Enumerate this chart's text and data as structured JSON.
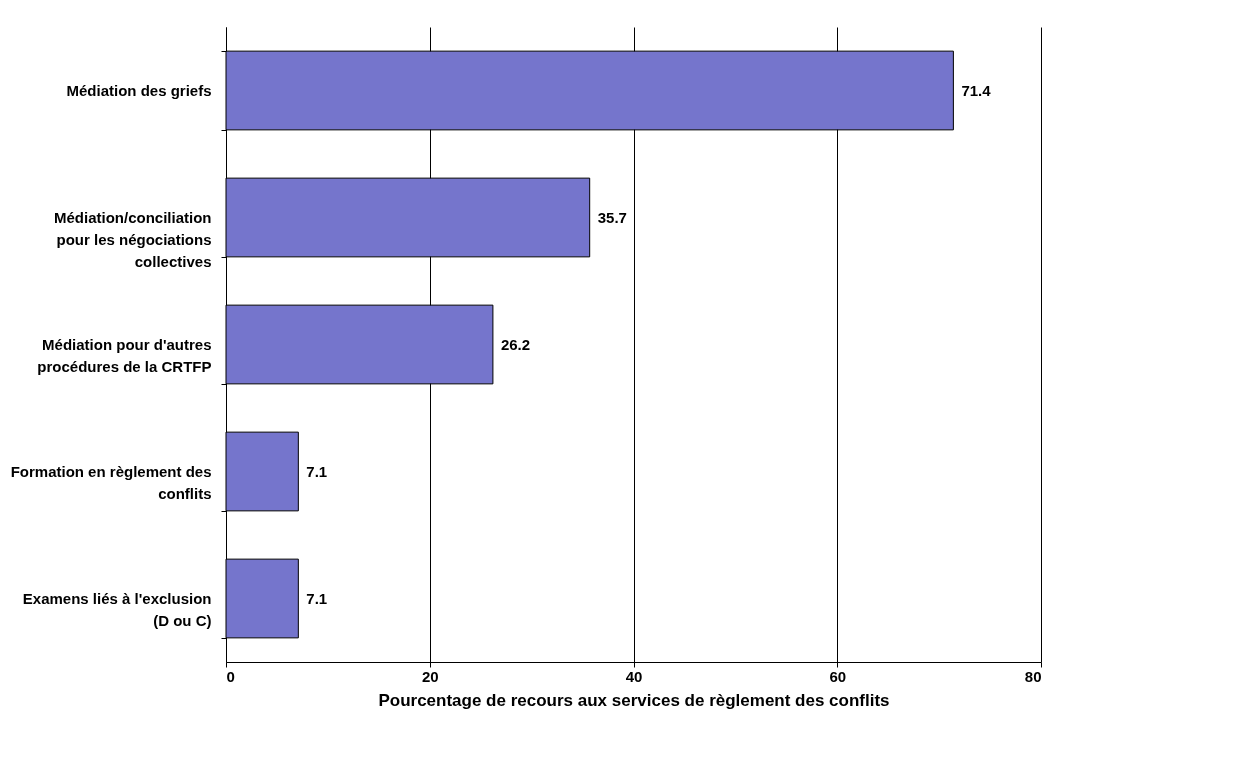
{
  "chart_data": {
    "type": "bar",
    "orientation": "horizontal",
    "categories": [
      "Médiation des griefs",
      "Médiation/conciliation pour les négociations collectives",
      "Médiation pour d'autres procédures de la CRTFP",
      "Formation en règlement des conflits",
      "Examens liés à l'exclusion (D ou C)"
    ],
    "values": [
      71.4,
      35.7,
      26.2,
      7.1,
      7.1
    ],
    "color": "#7575cc",
    "xlabel": "Pourcentage de recours aux services de règlement des conflits",
    "xlim": [
      0,
      80
    ],
    "xticks": [
      0,
      20,
      40,
      60,
      80
    ],
    "grid": "x",
    "data_labels": true
  }
}
